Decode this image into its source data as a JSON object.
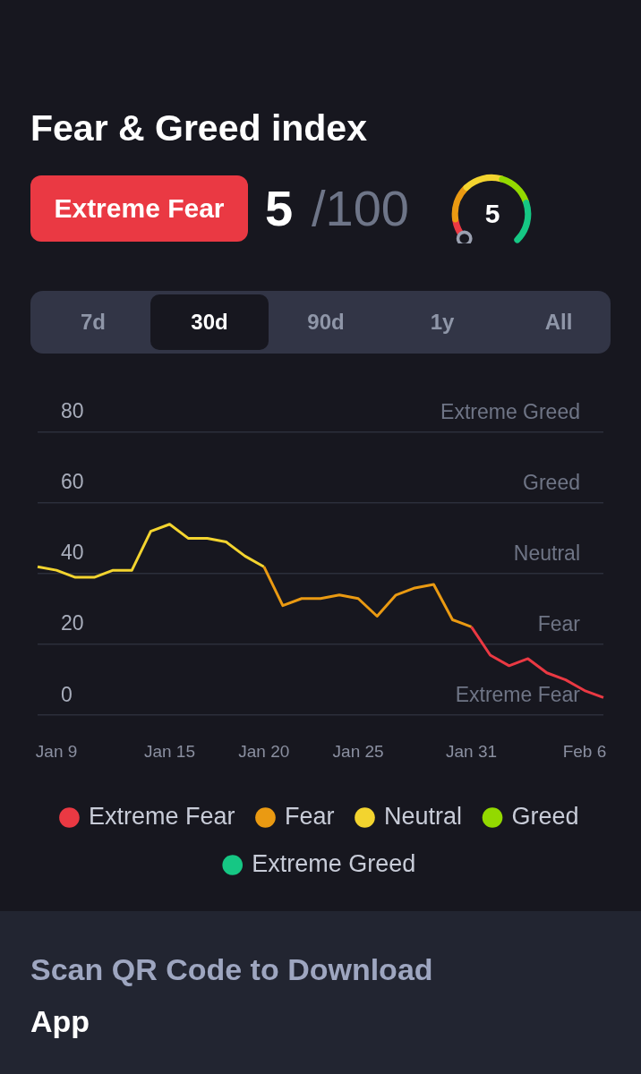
{
  "chart_data": {
    "type": "line",
    "title": "Fear & Greed index",
    "annotations": [
      "Extreme Fear",
      "5",
      "/100",
      "5",
      "7d",
      "30d",
      "90d",
      "1y",
      "All",
      "Scan QR Code to Download",
      "App",
      "Extreme Fear",
      "Fear",
      "Neutral",
      "Greed",
      "Extreme Greed"
    ],
    "categories": [
      null,
      "Jan 9",
      null,
      null,
      null,
      null,
      null,
      "Jan 15",
      null,
      null,
      null,
      null,
      "Jan 20",
      null,
      null,
      null,
      null,
      "Jan 25",
      null,
      null,
      null,
      null,
      null,
      "Jan 31",
      null,
      null,
      null,
      null,
      null,
      "Feb 6",
      null
    ],
    "series": [
      {
        "name": "Extreme Fear",
        "color": "#ea3943",
        "values": [
          null,
          null,
          null,
          null,
          null,
          null,
          null,
          null,
          null,
          null,
          null,
          null,
          null,
          null,
          null,
          null,
          null,
          null,
          null,
          null,
          null,
          null,
          null,
          25,
          17,
          14,
          16,
          12,
          10,
          7,
          5
        ]
      },
      {
        "name": "Fear",
        "color": "#ea9a12",
        "values": [
          null,
          null,
          null,
          null,
          null,
          null,
          null,
          null,
          null,
          null,
          null,
          null,
          42,
          31,
          33,
          33,
          34,
          33,
          28,
          34,
          36,
          37,
          27,
          25,
          null,
          null,
          null,
          null,
          null,
          null,
          null
        ]
      },
      {
        "name": "Neutral",
        "color": "#f3d42f",
        "values": [
          42,
          41,
          39,
          39,
          41,
          41,
          52,
          54,
          50,
          50,
          49,
          45,
          42,
          null,
          null,
          null,
          null,
          null,
          null,
          null,
          null,
          null,
          null,
          null,
          null,
          null,
          null,
          null,
          null,
          null,
          null
        ]
      },
      {
        "name": "Greed",
        "color": "#93d900",
        "values": [
          null,
          null,
          null,
          null,
          null,
          null,
          null,
          null,
          null,
          null,
          null,
          null,
          null,
          null,
          null,
          null,
          null,
          null,
          null,
          null,
          null,
          null,
          null,
          null,
          null,
          null,
          null,
          null,
          null,
          null,
          null
        ]
      },
      {
        "name": "Extreme Greed",
        "color": "#16c784",
        "values": [
          null,
          null,
          null,
          null,
          null,
          null,
          null,
          null,
          null,
          null,
          null,
          null,
          null,
          null,
          null,
          null,
          null,
          null,
          null,
          null,
          null,
          null,
          null,
          null,
          null,
          null,
          null,
          null,
          null,
          null,
          null
        ]
      }
    ],
    "ylim": [
      0,
      80
    ],
    "yticks": [
      0,
      20,
      40,
      60,
      80
    ],
    "grid": "y",
    "legend": "bottom",
    "marker": "none",
    "line_style": "solid"
  }
}
